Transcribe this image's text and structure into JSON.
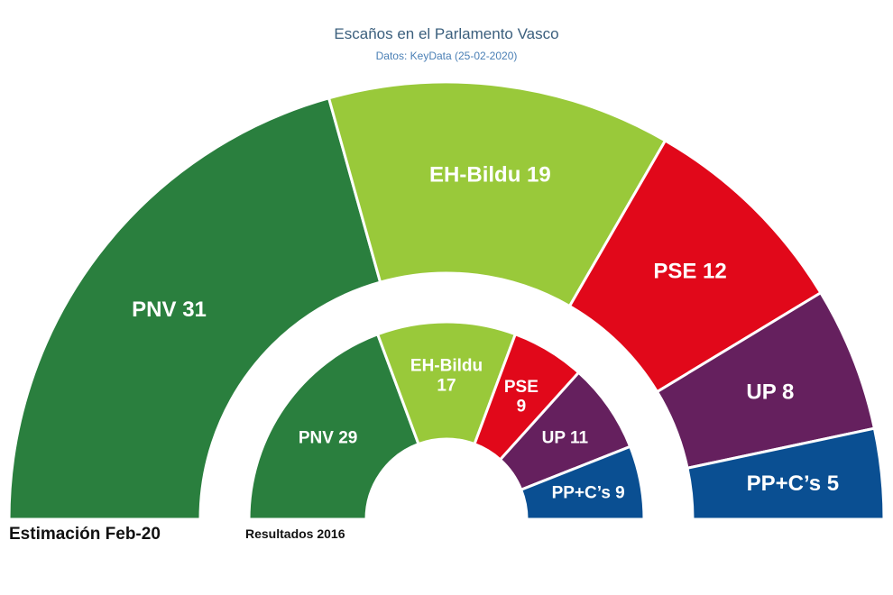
{
  "header": {
    "title": "Escaños en el Parlamento Vasco",
    "subtitle": "Datos: KeyData (25-02-2020)"
  },
  "colors": {
    "PNV": "#2a7f3e",
    "EH-Bildu": "#99c93a",
    "PSE": "#e1081a",
    "UP": "#65205e",
    "PP+C's": "#0a4f92"
  },
  "chart_data": [
    {
      "type": "pie",
      "caption": "Estimación Feb-20",
      "categories": [
        "PNV",
        "EH-Bildu",
        "PSE",
        "UP",
        "PP+C's"
      ],
      "labels": [
        "PNV 31",
        "EH-Bildu 19",
        "PSE 12",
        "UP 8",
        "PP+C’s 5"
      ],
      "values": [
        31,
        19,
        12,
        8,
        5
      ]
    },
    {
      "type": "pie",
      "caption": "Resultados 2016",
      "categories": [
        "PNV",
        "EH-Bildu",
        "PSE",
        "UP",
        "PP+C's"
      ],
      "labels": [
        "PNV 29",
        "EH-Bildu 17",
        "PSE 9",
        "UP 11",
        "PP+C’s 9"
      ],
      "values": [
        29,
        17,
        9,
        11,
        9
      ]
    }
  ]
}
